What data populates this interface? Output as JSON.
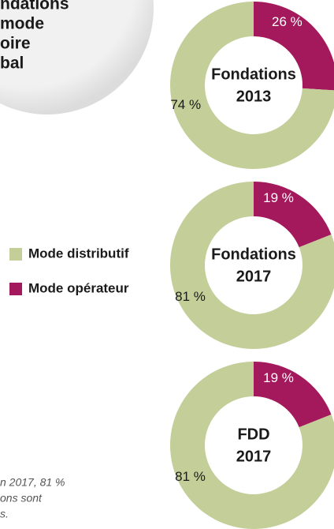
{
  "header": {
    "lines": [
      "ndations",
      "mode",
      "oire",
      "bal"
    ]
  },
  "legend": [
    {
      "name": "Mode distributif",
      "color": "#c4ce98"
    },
    {
      "name": "Mode opérateur",
      "color": "#a3195b"
    }
  ],
  "footnote": [
    "n 2017, 81 %",
    "ons sont",
    "s."
  ],
  "chart_data": [
    {
      "type": "pie",
      "title": [
        "Fondations",
        "2013"
      ],
      "values": [
        74,
        26
      ],
      "value_labels": [
        "74 %",
        "26 %"
      ]
    },
    {
      "type": "pie",
      "title": [
        "Fondations",
        "2017"
      ],
      "values": [
        81,
        19
      ],
      "value_labels": [
        "81 %",
        "19 %"
      ]
    },
    {
      "type": "pie",
      "title": [
        "FDD",
        "2017"
      ],
      "values": [
        81,
        19
      ],
      "value_labels": [
        "81 %",
        "19 %"
      ]
    }
  ]
}
